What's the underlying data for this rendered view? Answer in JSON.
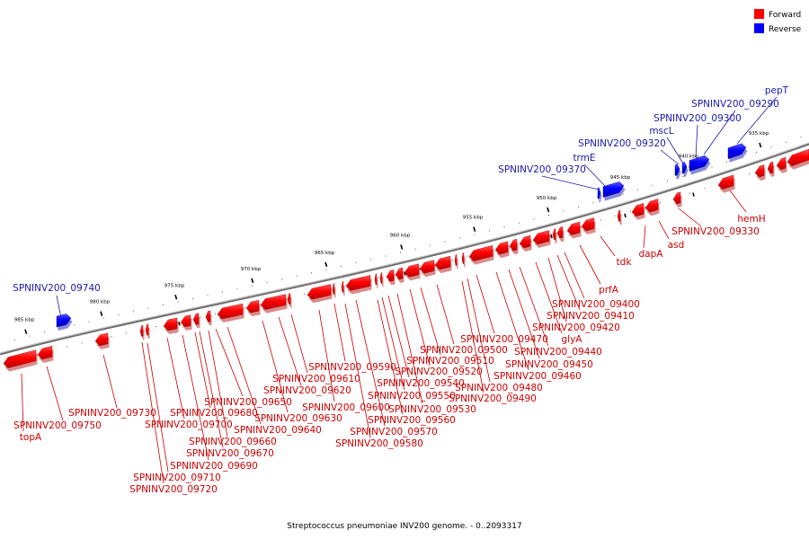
{
  "legend": {
    "forward": {
      "label": "Forward",
      "color": "#ff0000"
    },
    "reverse": {
      "label": "Reverse",
      "color": "#0000ff"
    }
  },
  "caption": "Streptococcus pneumoniae INV200 genome. - 0..2093317",
  "colors": {
    "forward_text": "#cc0000",
    "reverse_text": "#1a1aaa",
    "backbone": "#777777"
  },
  "ticks": [
    "985 kbp",
    "980 kbp",
    "975 kbp",
    "970 kbp",
    "965 kbp",
    "960 kbp",
    "955 kbp",
    "950 kbp",
    "945 kbp",
    "940 kbp",
    "935 kbp"
  ],
  "reverse_labels": [
    "SPNINV200_09740",
    "SPNINV200_09370",
    "trmE",
    "SPNINV200_09320",
    "mscL",
    "SPNINV200_09300",
    "SPNINV200_09290",
    "pepT"
  ],
  "forward_labels": [
    "SPNINV200_09750",
    "topA",
    "SPNINV200_09730",
    "SPNINV200_09720",
    "SPNINV200_09710",
    "SPNINV200_09700",
    "SPNINV200_09690",
    "SPNINV200_09680",
    "SPNINV200_09670",
    "SPNINV200_09660",
    "SPNINV200_09650",
    "SPNINV200_09640",
    "SPNINV200_09630",
    "SPNINV200_09620",
    "SPNINV200_09610",
    "SPNINV200_09600",
    "SPNINV200_09590",
    "SPNINV200_09580",
    "SPNINV200_09570",
    "SPNINV200_09560",
    "SPNINV200_09550",
    "SPNINV200_09540",
    "SPNINV200_09530",
    "SPNINV200_09520",
    "SPNINV200_09510",
    "SPNINV200_09500",
    "SPNINV200_09490",
    "SPNINV200_09480",
    "SPNINV200_09470",
    "SPNINV200_09460",
    "SPNINV200_09450",
    "SPNINV200_09440",
    "glyA",
    "SPNINV200_09420",
    "SPNINV200_09410",
    "SPNINV200_09400",
    "prfA",
    "tdk",
    "dapA",
    "asd",
    "SPNINV200_09330",
    "hemH"
  ]
}
